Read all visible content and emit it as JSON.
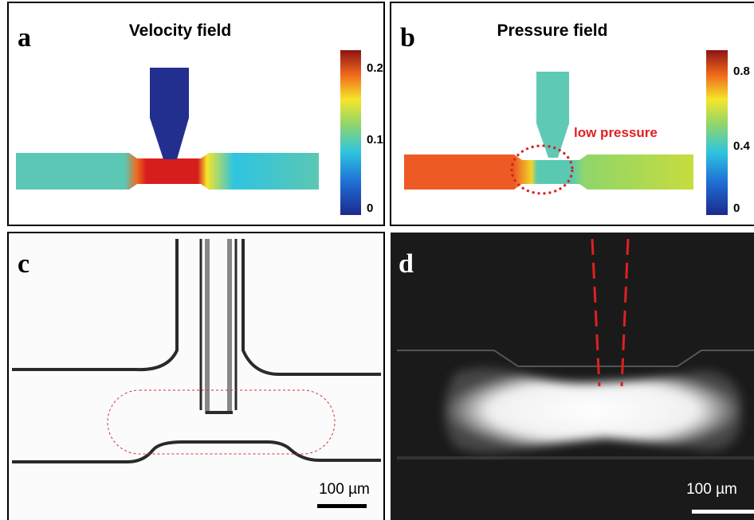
{
  "panels": [
    {
      "label": "a",
      "title": "Velocity field",
      "colorbar_ticks": [
        0.2,
        0.1,
        0
      ]
    },
    {
      "label": "b",
      "title": "Pressure field",
      "colorbar_ticks": [
        0.8,
        0.4,
        0
      ],
      "annotation": "low pressure"
    },
    {
      "label": "c",
      "scale_bar": "100 µm"
    },
    {
      "label": "d",
      "scale_bar": "100 µm"
    }
  ]
}
